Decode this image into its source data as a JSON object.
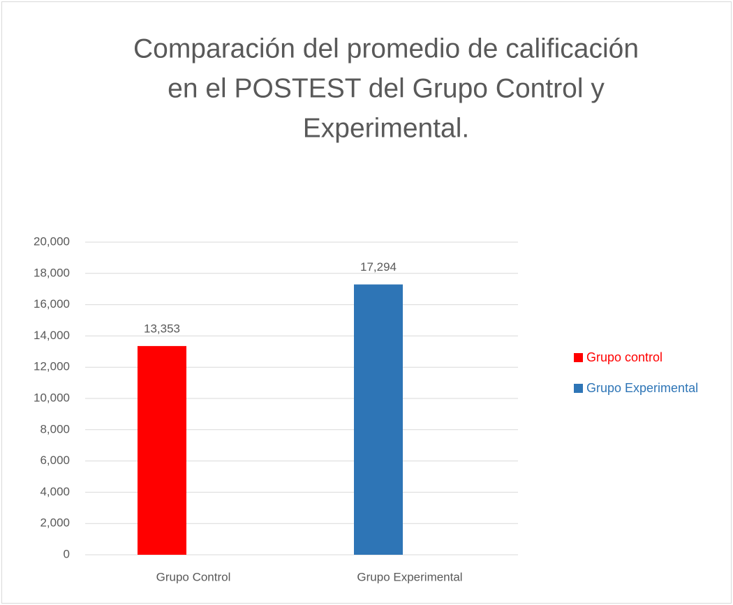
{
  "chart_data": {
    "type": "bar",
    "title": [
      "Comparación del promedio de calificación",
      "en el POSTEST del Grupo Control y",
      "Experimental."
    ],
    "categories": [
      "Grupo Control",
      "Grupo Experimental"
    ],
    "series": [
      {
        "name": "Grupo control",
        "color": "#ff0000",
        "values": [
          13.353,
          null
        ],
        "value_labels": [
          "13,353",
          null
        ]
      },
      {
        "name": "Grupo Experimental",
        "color": "#2e75b6",
        "values": [
          null,
          17.294
        ],
        "value_labels": [
          null,
          "17,294"
        ]
      }
    ],
    "ylim": [
      0,
      20
    ],
    "yticks": [
      0,
      {
        "value": 2,
        "label": "2,000"
      },
      {
        "value": 4,
        "label": "4,000"
      },
      {
        "value": 6,
        "label": "6,000"
      },
      {
        "value": 8,
        "label": "8,000"
      },
      {
        "value": 10,
        "label": "10,000"
      },
      {
        "value": 12,
        "label": "12,000"
      },
      {
        "value": 14,
        "label": "14,000"
      },
      {
        "value": 16,
        "label": "16,000"
      },
      {
        "value": 18,
        "label": "18,000"
      },
      {
        "value": 20,
        "label": "20,000"
      }
    ],
    "grid": true,
    "legend": "right"
  }
}
